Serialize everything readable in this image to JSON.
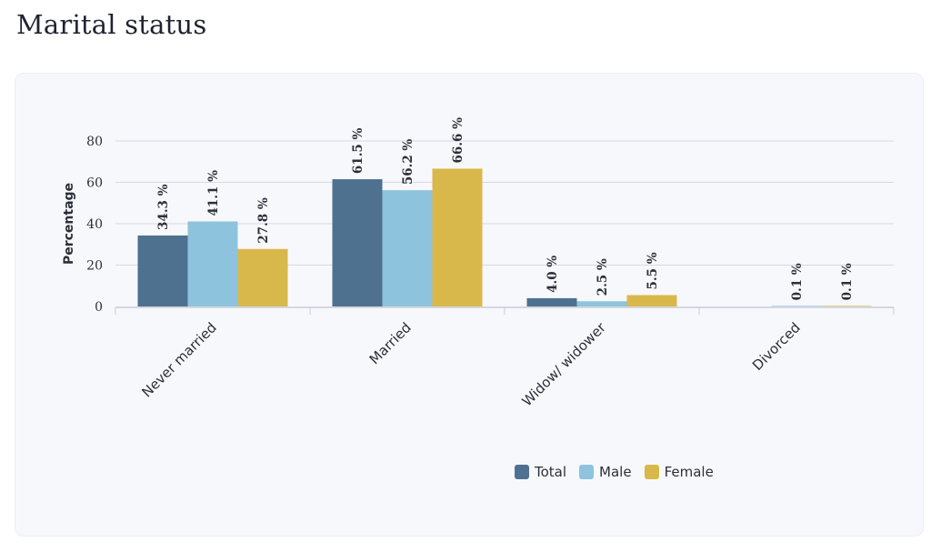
{
  "page": {
    "title": "Marital status"
  },
  "chart_data": {
    "type": "bar",
    "categories": [
      "Never married",
      "Married",
      "Widow/ widower",
      "Divorced"
    ],
    "series": [
      {
        "name": "Total",
        "color": "#4e7190",
        "values": [
          34.3,
          61.5,
          4.0,
          null
        ]
      },
      {
        "name": "Male",
        "color": "#8ec3dd",
        "values": [
          41.1,
          56.2,
          2.5,
          0.1
        ]
      },
      {
        "name": "Female",
        "color": "#d9b84b",
        "values": [
          27.8,
          66.6,
          5.5,
          0.1
        ]
      }
    ],
    "value_suffix": " %",
    "ylabel": "Percentage",
    "xlabel": "",
    "ylim": [
      0,
      80
    ],
    "yticks": [
      0,
      20,
      40,
      60,
      80
    ],
    "grid": true,
    "legend_position": "bottom"
  }
}
